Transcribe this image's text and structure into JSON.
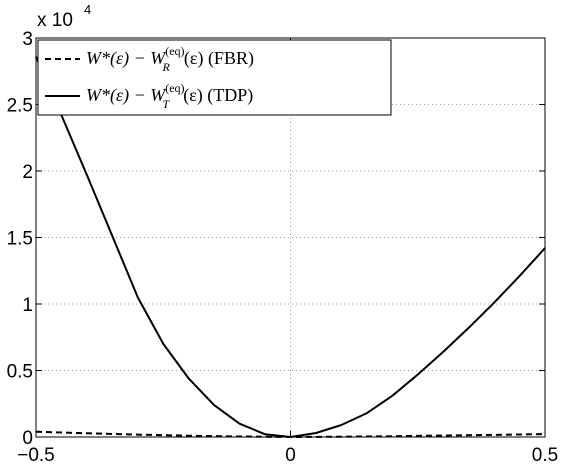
{
  "chart_data": {
    "type": "line",
    "title": "",
    "xlabel": "",
    "ylabel": "",
    "xlim": [
      -0.5,
      0.5
    ],
    "ylim": [
      0,
      30000
    ],
    "grid": true,
    "legend_position": "top-left",
    "y_multiplier_label": "x 10",
    "y_multiplier_exponent": "4",
    "x_ticks": [
      -0.5,
      0,
      0.5
    ],
    "x_tick_labels": [
      "−0.5",
      "0",
      "0.5"
    ],
    "y_ticks": [
      0,
      5000,
      10000,
      15000,
      20000,
      25000,
      30000
    ],
    "y_tick_labels": [
      "0",
      "0.5",
      "1",
      "1.5",
      "2",
      "2.5",
      "3"
    ],
    "series": [
      {
        "name": "W*(ε) − W_R^(eq)(ε) (FBR)",
        "legend_main": "W*(ε) − W",
        "legend_sub": "R",
        "legend_sup": "(eq)",
        "legend_tail": "(ε) (FBR)",
        "style": "dashed",
        "color": "#000000",
        "x": [
          -0.5,
          -0.4,
          -0.3,
          -0.2,
          -0.1,
          0,
          0.1,
          0.2,
          0.3,
          0.4,
          0.5
        ],
        "y": [
          400,
          280,
          180,
          100,
          40,
          0,
          20,
          60,
          110,
          160,
          220
        ]
      },
      {
        "name": "W*(ε) − W_T^(eq)(ε) (TDP)",
        "legend_main": "W*(ε) − W",
        "legend_sub": "T",
        "legend_sup": "(eq)",
        "legend_tail": "(ε) (TDP)",
        "style": "solid",
        "color": "#000000",
        "x": [
          -0.5,
          -0.45,
          -0.4,
          -0.35,
          -0.3,
          -0.25,
          -0.2,
          -0.15,
          -0.1,
          -0.05,
          0,
          0.05,
          0.1,
          0.15,
          0.2,
          0.25,
          0.3,
          0.35,
          0.4,
          0.45,
          0.5
        ],
        "y": [
          28600,
          24200,
          19700,
          15100,
          10500,
          7000,
          4400,
          2400,
          1000,
          200,
          0,
          300,
          900,
          1800,
          3100,
          4700,
          6400,
          8200,
          10100,
          12100,
          14200
        ]
      }
    ]
  }
}
